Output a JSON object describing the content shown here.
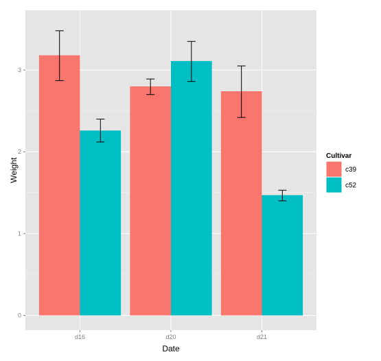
{
  "chart_data": {
    "type": "bar",
    "xlabel": "Date",
    "ylabel": "Weight",
    "categories": [
      "d16",
      "d20",
      "d21"
    ],
    "ylim": [
      -0.18,
      3.73
    ],
    "yticks": [
      0,
      1,
      2,
      3
    ],
    "grid": true,
    "legend": {
      "title": "Cultivar",
      "position": "right"
    },
    "series": [
      {
        "name": "c39",
        "color": "#f8766d",
        "values": [
          3.18,
          2.8,
          2.74
        ],
        "error_low": [
          2.87,
          2.7,
          2.42
        ],
        "error_high": [
          3.48,
          2.89,
          3.05
        ]
      },
      {
        "name": "c52",
        "color": "#00bfc4",
        "values": [
          2.26,
          3.11,
          1.47
        ],
        "error_low": [
          2.12,
          2.86,
          1.4
        ],
        "error_high": [
          2.4,
          3.35,
          1.53
        ]
      }
    ]
  }
}
